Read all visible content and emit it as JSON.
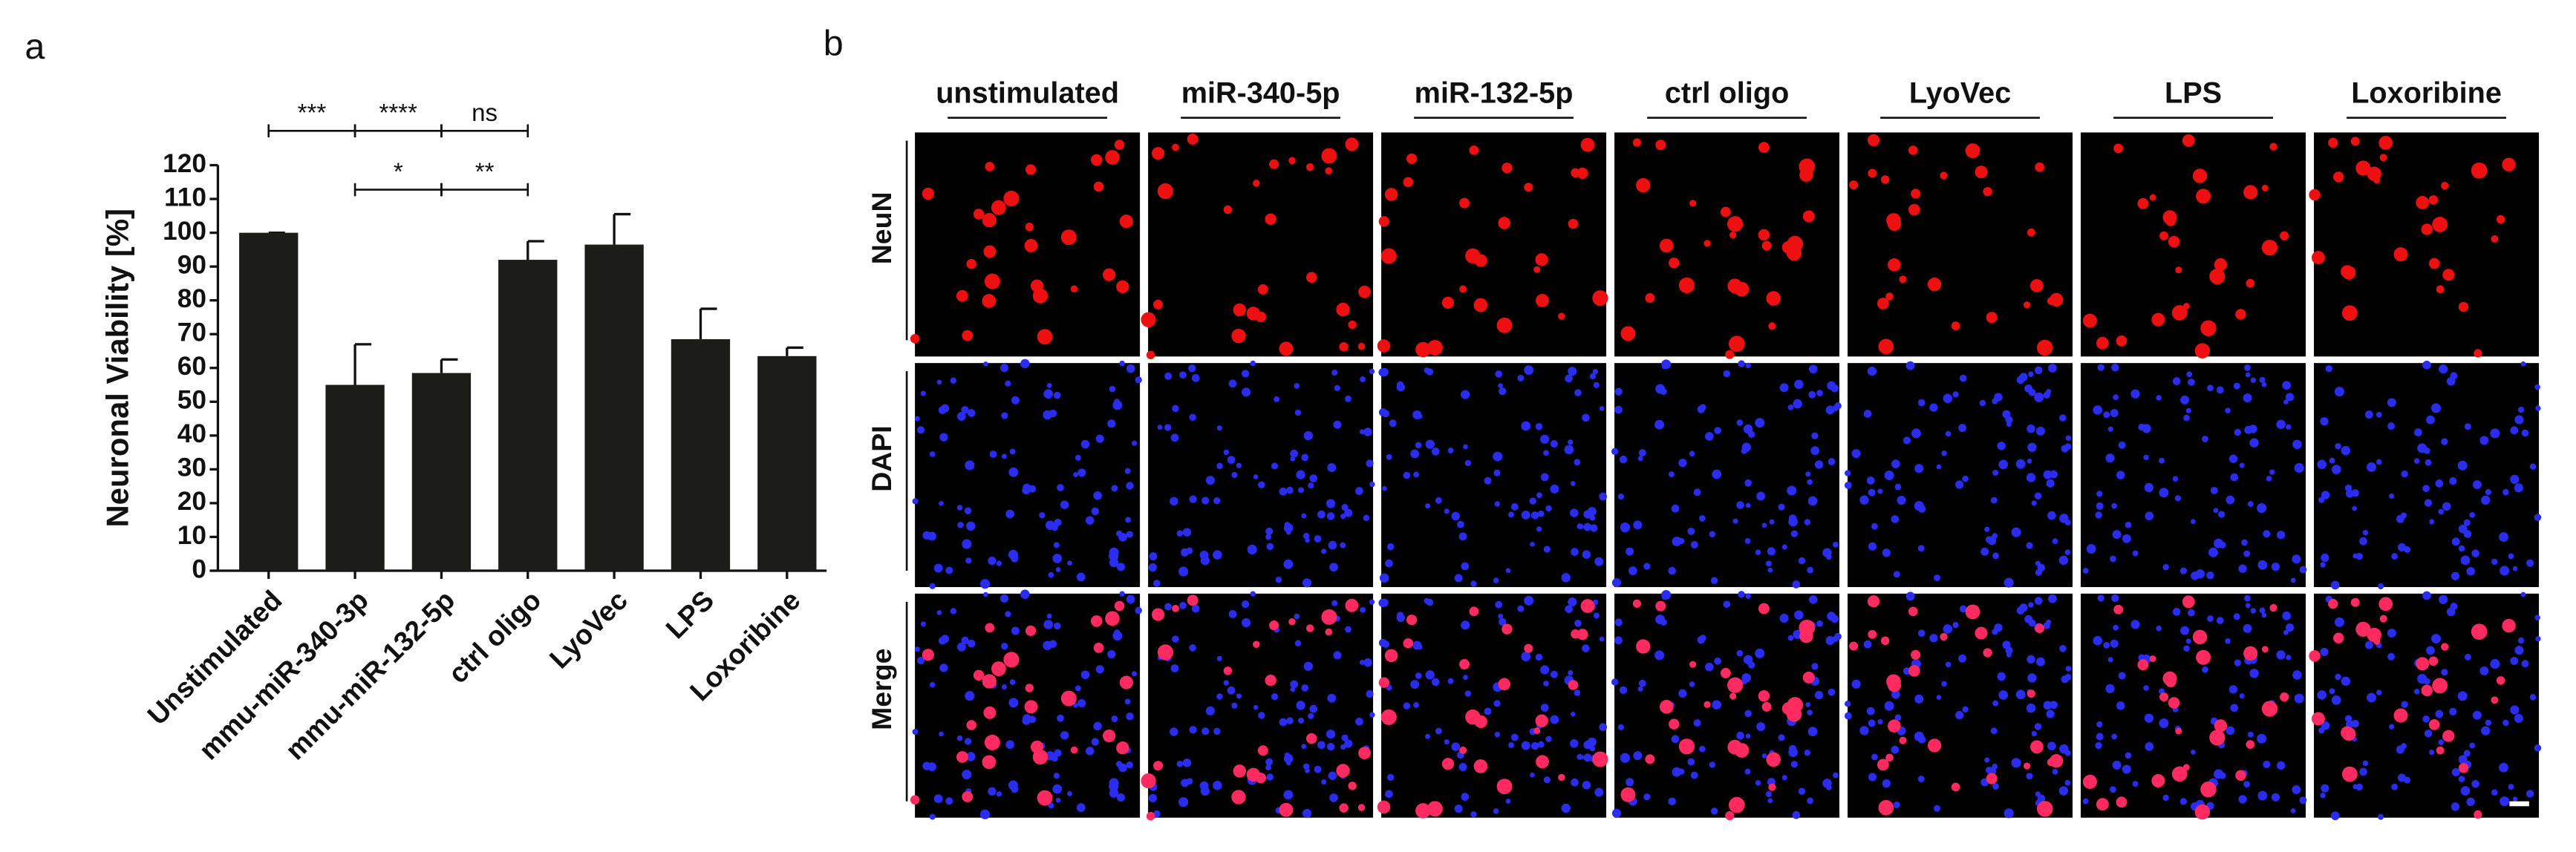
{
  "chart_data": {
    "type": "bar",
    "panel_label": "a",
    "y_label": "Neuronal Viability [%]",
    "categories": [
      "Unstimulated",
      "mmu-miR-340-3p",
      "mmu-miR-132-5p",
      "ctrl oligo",
      "LyoVec",
      "LPS",
      "Loxoribine"
    ],
    "values": [
      100,
      55,
      58.5,
      92,
      96.5,
      68.5,
      63.5
    ],
    "errors": [
      0,
      12,
      4,
      5.5,
      9,
      9,
      2.5
    ],
    "color": "#1c1c18",
    "ylim": [
      0,
      120
    ],
    "yticks": [
      0,
      10,
      20,
      30,
      40,
      50,
      60,
      70,
      80,
      90,
      100,
      110,
      120
    ],
    "annotations": [
      "***",
      "****",
      "ns",
      "*",
      "**"
    ]
  },
  "panel_b": {
    "panel_label": "b",
    "columns": [
      "unstimulated",
      "miR-340-5p",
      "miR-132-5p",
      "ctrl oligo",
      "LyoVec",
      "LPS",
      "Loxoribine"
    ],
    "rows": [
      "NeuN",
      "DAPI",
      "Merge"
    ]
  }
}
